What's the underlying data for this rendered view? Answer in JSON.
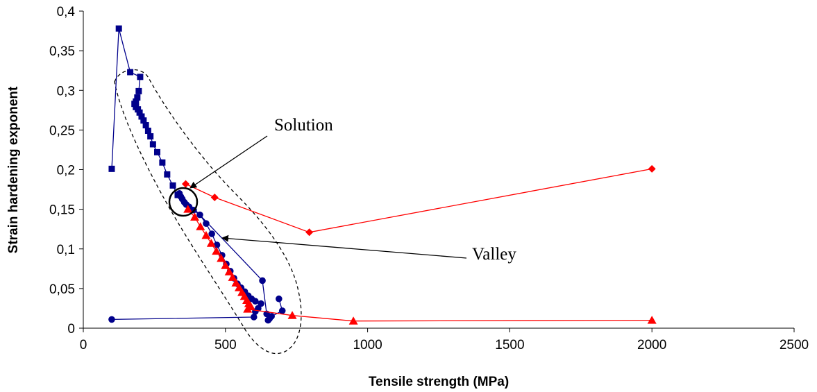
{
  "chart_data": {
    "type": "scatter",
    "xlabel": "Tensile strength (MPa)",
    "ylabel": "Strain hardening exponent",
    "xlim": [
      0,
      2500
    ],
    "ylim": [
      0,
      0.4
    ],
    "x_ticks": [
      {
        "value": 0,
        "label": "0"
      },
      {
        "value": 500,
        "label": "500"
      },
      {
        "value": 1000,
        "label": "1000"
      },
      {
        "value": 1500,
        "label": "1500"
      },
      {
        "value": 2000,
        "label": "2000"
      },
      {
        "value": 2500,
        "label": "2500"
      }
    ],
    "y_ticks": [
      {
        "value": 0,
        "label": "0"
      },
      {
        "value": 0.05,
        "label": "0,05"
      },
      {
        "value": 0.1,
        "label": "0,1"
      },
      {
        "value": 0.15,
        "label": "0,15"
      },
      {
        "value": 0.2,
        "label": "0,2"
      },
      {
        "value": 0.25,
        "label": "0,25"
      },
      {
        "value": 0.3,
        "label": "0,3"
      },
      {
        "value": 0.35,
        "label": "0,35"
      },
      {
        "value": 0.4,
        "label": "0,4"
      }
    ],
    "grid": false,
    "legend": "none",
    "series": [
      {
        "marker": "square",
        "color": "#00008B",
        "points": [
          [
            100,
            0.201
          ],
          [
            125,
            0.378
          ],
          [
            165,
            0.323
          ],
          [
            200,
            0.317
          ],
          [
            195,
            0.299
          ],
          [
            190,
            0.291
          ],
          [
            185,
            0.286
          ],
          [
            180,
            0.283
          ],
          [
            185,
            0.279
          ],
          [
            192,
            0.276
          ],
          [
            198,
            0.272
          ],
          [
            205,
            0.267
          ],
          [
            212,
            0.262
          ],
          [
            220,
            0.256
          ],
          [
            228,
            0.249
          ],
          [
            236,
            0.242
          ],
          [
            245,
            0.232
          ],
          [
            260,
            0.222
          ],
          [
            278,
            0.209
          ],
          [
            295,
            0.194
          ],
          [
            315,
            0.18
          ],
          [
            332,
            0.168
          ]
        ]
      },
      {
        "marker": "circle",
        "color": "#00008B",
        "points": [
          [
            100,
            0.011
          ],
          [
            600,
            0.014
          ],
          [
            605,
            0.021
          ],
          [
            615,
            0.025
          ],
          [
            625,
            0.031
          ],
          [
            605,
            0.034
          ],
          [
            592,
            0.037
          ],
          [
            580,
            0.041
          ],
          [
            568,
            0.046
          ],
          [
            555,
            0.051
          ],
          [
            542,
            0.056
          ],
          [
            530,
            0.063
          ],
          [
            517,
            0.072
          ],
          [
            503,
            0.081
          ],
          [
            488,
            0.092
          ],
          [
            470,
            0.105
          ],
          [
            452,
            0.119
          ],
          [
            432,
            0.132
          ],
          [
            410,
            0.143
          ],
          [
            388,
            0.149
          ],
          [
            372,
            0.153
          ],
          [
            362,
            0.156
          ],
          [
            355,
            0.159
          ],
          [
            348,
            0.163
          ],
          [
            343,
            0.166
          ],
          [
            338,
            0.17
          ],
          [
            630,
            0.06
          ],
          [
            645,
            0.018
          ],
          [
            650,
            0.01
          ],
          [
            655,
            0.012
          ],
          [
            662,
            0.015
          ],
          [
            700,
            0.022
          ],
          [
            688,
            0.037
          ]
        ]
      },
      {
        "marker": "diamond",
        "color": "#FF0000",
        "points": [
          [
            360,
            0.182
          ],
          [
            462,
            0.165
          ],
          [
            795,
            0.121
          ],
          [
            2000,
            0.201
          ]
        ]
      },
      {
        "marker": "triangle",
        "color": "#FF0000",
        "points": [
          [
            368,
            0.15
          ],
          [
            392,
            0.14
          ],
          [
            412,
            0.128
          ],
          [
            432,
            0.117
          ],
          [
            450,
            0.107
          ],
          [
            468,
            0.097
          ],
          [
            485,
            0.088
          ],
          [
            500,
            0.079
          ],
          [
            513,
            0.071
          ],
          [
            525,
            0.064
          ],
          [
            537,
            0.057
          ],
          [
            548,
            0.051
          ],
          [
            558,
            0.045
          ],
          [
            567,
            0.04
          ],
          [
            575,
            0.035
          ],
          [
            582,
            0.031
          ],
          [
            588,
            0.028
          ],
          [
            578,
            0.024
          ],
          [
            735,
            0.016
          ],
          [
            950,
            0.009
          ],
          [
            2000,
            0.01
          ]
        ]
      }
    ],
    "annotations": [
      {
        "text": "Solution",
        "target": [
          380,
          0.175
        ],
        "anchor": "upper-left"
      },
      {
        "text": "Valley",
        "target": [
          490,
          0.113
        ],
        "anchor": "right"
      }
    ]
  }
}
